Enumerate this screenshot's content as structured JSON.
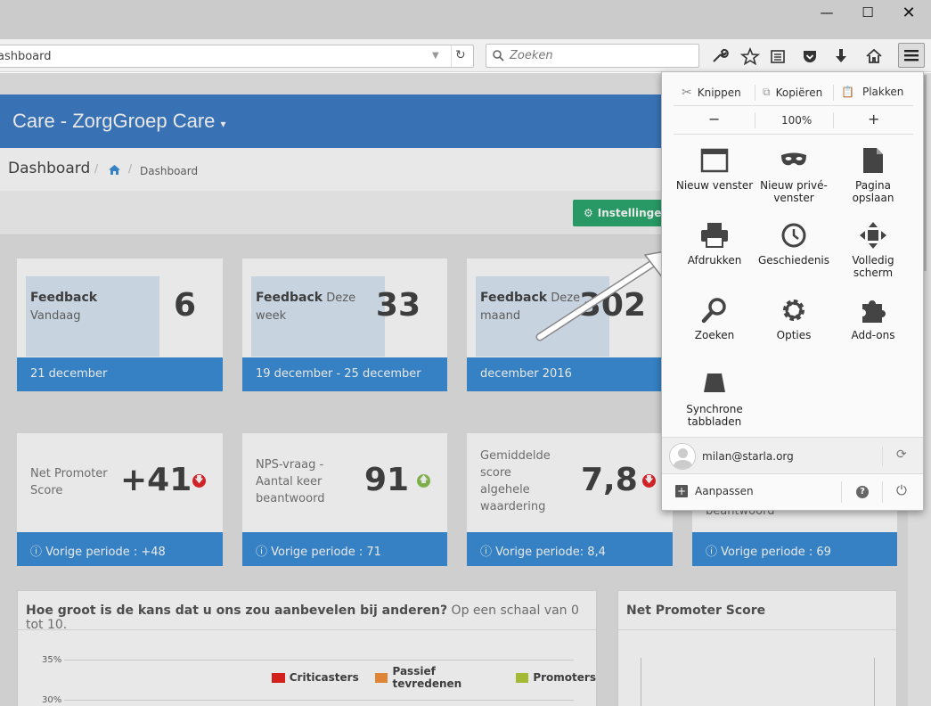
{
  "browser": {
    "url_text": "ashboard",
    "search_placeholder": "Zoeken",
    "window_controls": [
      "minimize",
      "maximize",
      "close"
    ]
  },
  "app": {
    "title": "Care - ZorgGroep Care",
    "page_title": "Dashboard",
    "breadcrumb": [
      "home-icon",
      "Dashboard"
    ],
    "settings_button": "Instellingen"
  },
  "feedback_cards": [
    {
      "label_bold": "Feedback",
      "label_rest": "Vandaag",
      "value": "6",
      "footer": "21 december"
    },
    {
      "label_bold": "Feedback",
      "label_rest": "Deze week",
      "value": "33",
      "footer": "19 december - 25 december"
    },
    {
      "label_bold": "Feedback",
      "label_rest": "Deze maand",
      "value": "302",
      "footer": "december 2016"
    }
  ],
  "metric_cards": [
    {
      "label": "Net Promoter Score",
      "value": "+41",
      "trend": "down",
      "footer": "Vorige periode : +48"
    },
    {
      "label": "NPS-vraag - Aantal keer beantwoord",
      "value": "91",
      "trend": "up",
      "footer": "Vorige periode : 71"
    },
    {
      "label": "Gemiddelde score algehele waardering",
      "value": "7,8",
      "trend": "down",
      "footer": "Vorige periode: 8,4"
    },
    {
      "label": "beantwoord",
      "value": "",
      "trend": "",
      "footer": "Vorige periode : 69"
    }
  ],
  "chart_panel": {
    "title_bold": "Hoe groot is de kans dat u ons zou aanbevelen bij anderen?",
    "title_rest": "Op een schaal van 0 tot 10.",
    "y_ticks": [
      "35%",
      "30%"
    ],
    "legend": [
      {
        "name": "Criticasters",
        "color": "#e8261f"
      },
      {
        "name": "Passief tevredenen",
        "color": "#f5943c"
      },
      {
        "name": "Promoters",
        "color": "#b5cc3a"
      }
    ]
  },
  "nps_panel": {
    "title": "Net Promoter Score"
  },
  "firefox_menu": {
    "edit": {
      "cut": "Knippen",
      "copy": "Kopiëren",
      "paste": "Plakken"
    },
    "zoom": {
      "minus": "−",
      "level": "100%",
      "plus": "+"
    },
    "items": [
      {
        "icon": "window-icon",
        "label": "Nieuw venster"
      },
      {
        "icon": "mask-icon",
        "label": "Nieuw privé-venster"
      },
      {
        "icon": "page-icon",
        "label": "Pagina opslaan"
      },
      {
        "icon": "printer-icon",
        "label": "Afdrukken"
      },
      {
        "icon": "clock-icon",
        "label": "Geschiedenis"
      },
      {
        "icon": "fullscreen-icon",
        "label": "Volledig scherm"
      },
      {
        "icon": "magnifier-icon",
        "label": "Zoeken"
      },
      {
        "icon": "gear-icon",
        "label": "Opties"
      },
      {
        "icon": "puzzle-icon",
        "label": "Add-ons"
      },
      {
        "icon": "sync-tabs-icon",
        "label": "Synchrone tabbladen"
      }
    ],
    "account": "milan@starla.org",
    "customize": "Aanpassen"
  },
  "colors": {
    "appbar": "#3f7ec6",
    "card_footer": "#3b8ed8",
    "settings_button": "#2ca870",
    "trend_down": "#e5262b",
    "trend_up": "#8cc152"
  }
}
